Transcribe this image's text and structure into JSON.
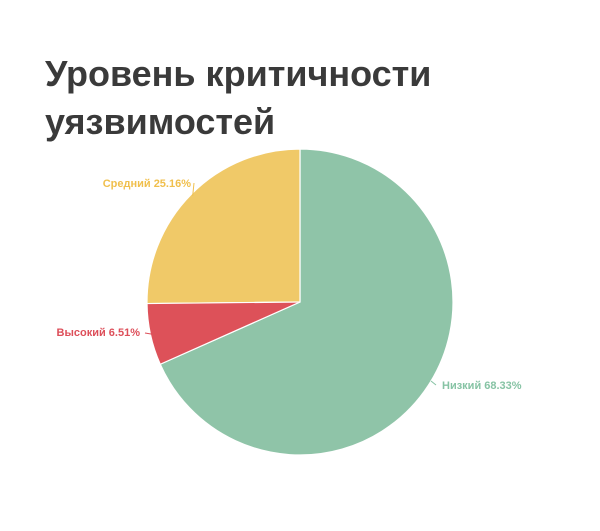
{
  "chart_data": {
    "type": "pie",
    "title": "Уровень критичности уязвимостей",
    "slices": [
      {
        "name": "Низкий",
        "value": 68.33,
        "label": "Низкий 68.33%",
        "color": "#8fc4a8",
        "label_color": "#86c3a4"
      },
      {
        "name": "Средний",
        "value": 25.16,
        "label": "Средний 25.16%",
        "color": "#f0c968",
        "label_color": "#f0bf4c"
      },
      {
        "name": "Высокий",
        "value": 6.51,
        "label": "Высокий 6.51%",
        "color": "#dd5159",
        "label_color": "#dd4f5a"
      }
    ],
    "start_angle": "12 o'clock",
    "direction": "counter-clockwise",
    "legend": "none"
  }
}
